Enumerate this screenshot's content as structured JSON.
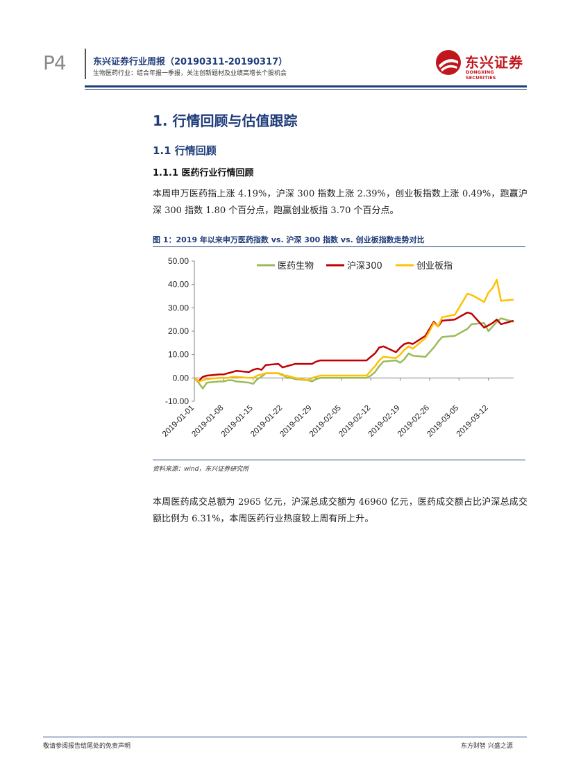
{
  "header": {
    "page_num": "P4",
    "title": "东兴证券行业周报（20190311-20190317）",
    "subtitle": "生物医药行业：结合年报一季报，关注创新题材及业绩高增长个股机会",
    "logo_cn": "东兴证券",
    "logo_en": "DONGXING SECURITIES"
  },
  "section": {
    "h1": "1. 行情回顾与估值跟踪",
    "h2": "1.1 行情回顾",
    "h3": "1.1.1 医药行业行情回顾"
  },
  "para1": "本周申万医药指上涨 4.19%，沪深 300 指数上涨 2.39%，创业板指数上涨 0.49%，跑赢沪深 300 指数 1.80 个百分点，跑赢创业板指 3.70 个百分点。",
  "figure": {
    "caption": "图 1：2019 年以来申万医药指数 vs. 沪深 300 指数 vs. 创业板指数走势对比",
    "source": "资料来源：wind，东兴证券研究所"
  },
  "para2": "本周医药成交总额为 2965 亿元，沪深总成交额为 46960 亿元，医药成交额占比沪深总成交额比例为 6.31%，本周医药行业热度较上周有所上升。",
  "footer": {
    "left": "敬请参阅报告结尾处的免责声明",
    "right": "东方财智 兴盛之源"
  },
  "colors": {
    "accent": "#1f3d7a",
    "brand_red": "#c0161c"
  },
  "chart_data": {
    "type": "line",
    "ylim": [
      -10,
      50
    ],
    "yticks": [
      "50.00",
      "40.00",
      "30.00",
      "20.00",
      "10.00",
      "0.00",
      "-10.00"
    ],
    "ytick_values": [
      50,
      40,
      30,
      20,
      10,
      0,
      -10
    ],
    "xtick_labels": [
      "2019-01-01",
      "2019-01-08",
      "2019-01-15",
      "2019-01-22",
      "2019-01-29",
      "2019-02-05",
      "2019-02-12",
      "2019-02-19",
      "2019-02-26",
      "2019-03-05",
      "2019-03-12"
    ],
    "x_days": [
      0,
      1,
      2,
      3,
      6,
      7,
      8,
      9,
      10,
      13,
      14,
      15,
      16,
      17,
      20,
      21,
      22,
      23,
      24,
      27,
      28,
      29,
      30,
      31,
      41,
      42,
      43,
      44,
      45,
      48,
      49,
      50,
      51,
      52,
      55,
      56,
      57,
      58,
      59,
      62,
      63,
      64,
      65,
      66,
      69,
      70,
      71,
      72,
      73,
      76
    ],
    "series": [
      {
        "name": "医药生物",
        "color": "#9bbb59",
        "values": [
          0,
          -2,
          -4.5,
          -2,
          -1.5,
          -1.5,
          -1,
          -1,
          -1.5,
          -2,
          -2.5,
          -0.5,
          0.5,
          2,
          2,
          1.5,
          0,
          0,
          -0.5,
          -1,
          -1.5,
          -0.5,
          0,
          0,
          0,
          1,
          2.5,
          5,
          7,
          7.5,
          6.5,
          8,
          10.5,
          9.5,
          9,
          11,
          13,
          15.5,
          17.5,
          18,
          19,
          20,
          21,
          23,
          23.5,
          20,
          22,
          24,
          25.5,
          24
        ]
      },
      {
        "name": "沪深300",
        "color": "#c00000",
        "values": [
          0,
          -1.5,
          0.5,
          1,
          1.5,
          1.5,
          2,
          2.5,
          3,
          2.5,
          3.5,
          4,
          3.5,
          5.5,
          6,
          4.5,
          5,
          5.5,
          6,
          6,
          6,
          7,
          7.5,
          7.5,
          7.5,
          9,
          10.5,
          13,
          13.5,
          11,
          13,
          14.5,
          15,
          14.5,
          18,
          21,
          24,
          22,
          24.5,
          25,
          26,
          27,
          28,
          27.5,
          21.5,
          22.5,
          23.5,
          25,
          23,
          24.5
        ]
      },
      {
        "name": "创业板指",
        "color": "#ffc000",
        "values": [
          0,
          -1.5,
          -1,
          -0.5,
          0,
          0,
          0,
          0.5,
          0.5,
          0,
          0,
          1,
          1.5,
          2,
          2,
          1,
          1,
          0.5,
          0,
          -1,
          0,
          0.5,
          1,
          1,
          1,
          3,
          5,
          7.5,
          9,
          8.5,
          10,
          12,
          13.5,
          12.5,
          17,
          20,
          23.5,
          22,
          26,
          27,
          30,
          33,
          36,
          35.5,
          32.5,
          36.5,
          38.5,
          42,
          33,
          33.5
        ]
      }
    ]
  }
}
